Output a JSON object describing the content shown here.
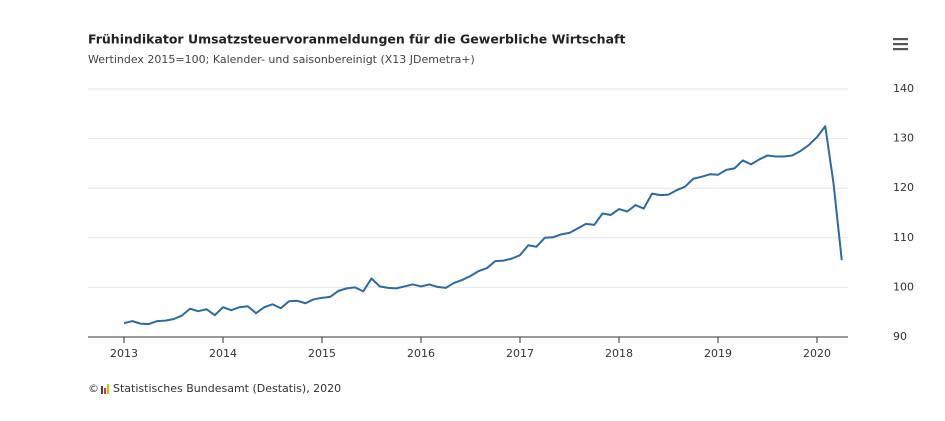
{
  "chart_data": {
    "type": "line",
    "title": "Frühindikator Umsatzsteuervoranmeldungen für die Gewerbliche Wirtschaft",
    "subtitle": "Wertindex 2015=100; Kalender- und saisonbereinigt (X13 JDemetra+)",
    "copyright": "©",
    "source": "Statistisches Bundesamt (Destatis), 2020",
    "categories": [
      "2013",
      null,
      null,
      null,
      null,
      null,
      null,
      null,
      null,
      null,
      null,
      null,
      "2014",
      null,
      null,
      null,
      null,
      null,
      null,
      null,
      null,
      null,
      null,
      null,
      "2015",
      null,
      null,
      null,
      null,
      null,
      null,
      null,
      null,
      null,
      null,
      null,
      "2016",
      null,
      null,
      null,
      null,
      null,
      null,
      null,
      null,
      null,
      null,
      null,
      "2017",
      null,
      null,
      null,
      null,
      null,
      null,
      null,
      null,
      null,
      null,
      null,
      "2018",
      null,
      null,
      null,
      null,
      null,
      null,
      null,
      null,
      null,
      null,
      null,
      "2019",
      null,
      null,
      null,
      null,
      null,
      null,
      null,
      null,
      null,
      null,
      null,
      "2020",
      null,
      null,
      null
    ],
    "series": [
      {
        "color": "#2f6a9f",
        "values": [
          92.8,
          93.2,
          92.7,
          92.6,
          93.2,
          93.3,
          93.6,
          94.3,
          95.7,
          95.2,
          95.6,
          94.4,
          96.0,
          95.4,
          96.0,
          96.2,
          94.8,
          96.0,
          96.6,
          95.8,
          97.2,
          97.3,
          96.8,
          97.6,
          97.9,
          98.1,
          99.3,
          99.8,
          100.0,
          99.2,
          101.8,
          100.2,
          99.9,
          99.8,
          100.2,
          100.6,
          100.2,
          100.6,
          100.1,
          99.9,
          100.9,
          101.5,
          102.3,
          103.3,
          103.9,
          105.3,
          105.4,
          105.8,
          106.5,
          108.5,
          108.2,
          110.0,
          110.1,
          110.7,
          111.0,
          111.9,
          112.8,
          112.6,
          114.9,
          114.6,
          115.8,
          115.3,
          116.6,
          115.9,
          118.9,
          118.6,
          118.7,
          119.6,
          120.3,
          121.9,
          122.3,
          122.8,
          122.7,
          123.7,
          124.0,
          125.6,
          124.8,
          125.8,
          126.6,
          126.4,
          126.4,
          126.6,
          127.5,
          128.7,
          130.3,
          132.5,
          121.0,
          105.5
        ]
      }
    ],
    "ylim": [
      90,
      140
    ],
    "yticks": [
      90,
      100,
      110,
      120,
      130,
      140
    ],
    "grid": true
  }
}
